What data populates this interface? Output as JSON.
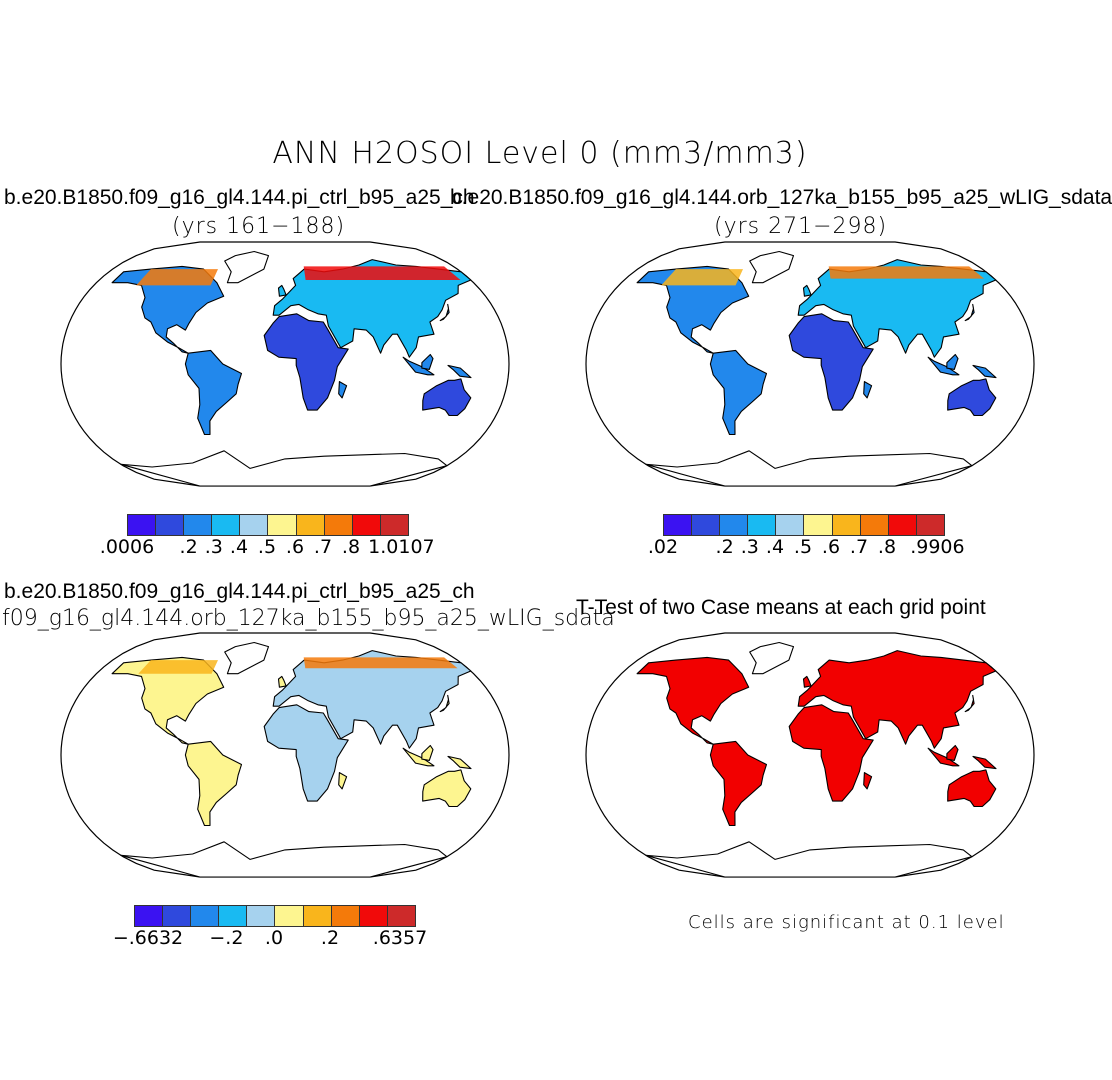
{
  "title": "ANN H2OSOI Level 0 (mm3/mm3)",
  "panels": {
    "case1": {
      "label": "b.e20.B1850.f09_g16_gl4.144.pi_ctrl_b95_a25_ch",
      "years": "(yrs 161−188)",
      "colorbar": {
        "colors": [
          "#3b12f2",
          "#2f49dd",
          "#2288ec",
          "#19baf2",
          "#a6d2ee",
          "#fdf590",
          "#f9b51c",
          "#f47a0a",
          "#f10a0a",
          "#cd2a2a"
        ],
        "ticks": [
          ".0006",
          ".2",
          ".3",
          ".4",
          ".5",
          ".6",
          ".7",
          ".8",
          "1.0107"
        ]
      }
    },
    "case2": {
      "label": "b.e20.B1850.f09_g16_gl4.144.orb_127ka_b155_b95_a25_wLIG_sdata",
      "years": "(yrs 271−298)",
      "colorbar": {
        "colors": [
          "#3b12f2",
          "#2f49dd",
          "#2288ec",
          "#19baf2",
          "#a6d2ee",
          "#fdf590",
          "#f9b51c",
          "#f47a0a",
          "#f10a0a",
          "#cd2a2a"
        ],
        "ticks": [
          ".02",
          ".2",
          ".3",
          ".4",
          ".5",
          ".6",
          ".7",
          ".8",
          ".9906"
        ]
      }
    },
    "difference": {
      "label1": "b.e20.B1850.f09_g16_gl4.144.pi_ctrl_b95_a25_ch",
      "label2": "f09_g16_gl4.144.orb_127ka_b155_b95_a25_wLIG_sdata",
      "colorbar": {
        "colors": [
          "#3b12f2",
          "#2f49dd",
          "#2288ec",
          "#19baf2",
          "#a6d2ee",
          "#fdf590",
          "#f9b51c",
          "#f47a0a",
          "#f10a0a",
          "#cd2a2a"
        ],
        "ticks": [
          "−.6632",
          "−.2",
          ".0",
          ".2",
          ".6357"
        ]
      }
    },
    "ttest": {
      "title": "T-Test of two Case means at each grid point",
      "note": "Cells are significant at 0.1 level",
      "significant_color": "#f20000"
    }
  },
  "colors": {
    "ocean": "#ffffff",
    "coast": "#000000"
  }
}
